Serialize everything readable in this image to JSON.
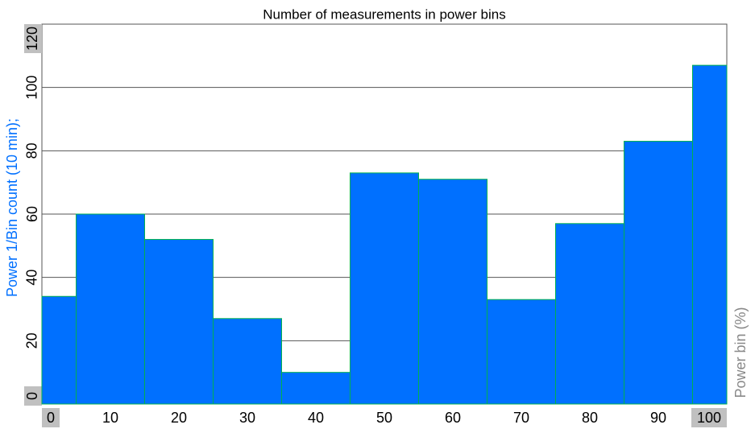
{
  "chart_data": {
    "type": "histogram",
    "title": "Number of measurements in power bins",
    "y_label": "Power 1/Bin count (10 min);",
    "x_label": "Power bin (%)",
    "bins": [
      0,
      5,
      15,
      25,
      35,
      45,
      55,
      65,
      75,
      85,
      95,
      100
    ],
    "values": [
      34,
      60,
      52,
      27,
      10,
      73,
      71,
      33,
      57,
      83,
      107
    ],
    "color": "#0070ff",
    "edge_color": "#00b050",
    "xlim": [
      0,
      100
    ],
    "xticks": [
      0,
      10,
      20,
      30,
      40,
      50,
      60,
      70,
      80,
      90,
      100
    ],
    "ylim": [
      0,
      120
    ],
    "yticks": [
      0,
      20,
      40,
      60,
      80,
      100,
      120
    ],
    "grid": true,
    "y_label_color": "#0070ff",
    "x_label_color": "#888888"
  }
}
